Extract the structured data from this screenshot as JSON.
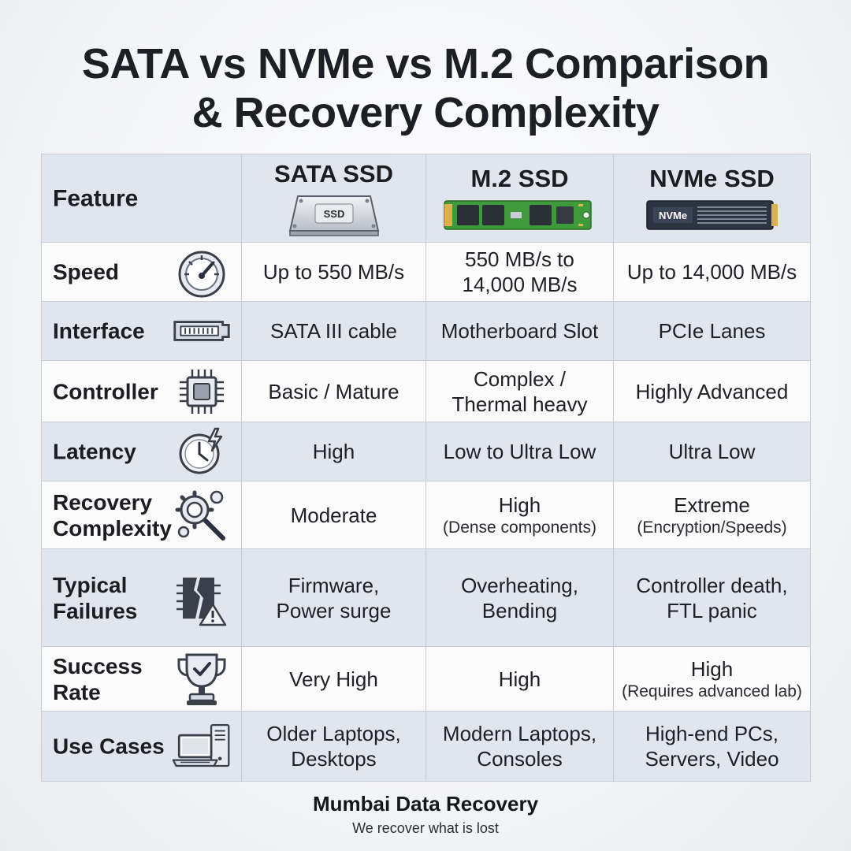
{
  "title": {
    "line1": "SATA vs NVMe vs M.2 Comparison",
    "line2": "& Recovery Complexity"
  },
  "table": {
    "feature_header": "Feature",
    "columns": [
      {
        "label": "SATA SSD",
        "image_icon": "sata-ssd-drive-icon",
        "image_text": "SSD"
      },
      {
        "label": "M.2 SSD",
        "image_icon": "m2-ssd-stick-icon"
      },
      {
        "label": "NVMe SSD",
        "image_icon": "nvme-ssd-stick-icon",
        "image_text": "NVMe"
      }
    ],
    "rows": [
      {
        "feature_line1": "Speed",
        "icon": "speedometer-icon",
        "cells": [
          {
            "main": "Up to 550 MB/s"
          },
          {
            "main": "550 MB/s to",
            "main2": "14,000 MB/s"
          },
          {
            "main": "Up to 14,000 MB/s"
          }
        ]
      },
      {
        "feature_line1": "Interface",
        "icon": "connector-port-icon",
        "cells": [
          {
            "main": "SATA III cable"
          },
          {
            "main": "Motherboard Slot"
          },
          {
            "main": "PCIe Lanes"
          }
        ]
      },
      {
        "feature_line1": "Controller",
        "icon": "chip-icon",
        "cells": [
          {
            "main": "Basic / Mature"
          },
          {
            "main": "Complex /",
            "main2": "Thermal heavy"
          },
          {
            "main": "Highly Advanced"
          }
        ]
      },
      {
        "feature_line1": "Latency",
        "icon": "clock-lightning-icon",
        "cells": [
          {
            "main": "High"
          },
          {
            "main": "Low to Ultra Low"
          },
          {
            "main": "Ultra Low"
          }
        ]
      },
      {
        "feature_line1": "Recovery",
        "feature_line2": "Complexity",
        "icon": "gears-magnifier-icon",
        "cells": [
          {
            "main": "Moderate"
          },
          {
            "main": "High",
            "sub": "(Dense components)"
          },
          {
            "main": "Extreme",
            "sub": "(Encryption/Speeds)"
          }
        ]
      },
      {
        "feature_line1": "Typical",
        "feature_line2": "Failures",
        "icon": "broken-chip-warning-icon",
        "cells": [
          {
            "main": "Firmware,",
            "main2": "Power surge"
          },
          {
            "main": "Overheating,",
            "main2": "Bending"
          },
          {
            "main": "Controller death,",
            "main2": "FTL panic"
          }
        ]
      },
      {
        "feature_line1": "Success",
        "feature_line2": "Rate",
        "icon": "trophy-check-icon",
        "cells": [
          {
            "main": "Very High"
          },
          {
            "main": "High"
          },
          {
            "main": "High",
            "sub": "(Requires advanced lab)"
          }
        ]
      },
      {
        "feature_line1": "Use Cases",
        "icon": "laptop-desktop-icon",
        "cells": [
          {
            "main": "Older Laptops,",
            "main2": "Desktops"
          },
          {
            "main": "Modern Laptops,",
            "main2": "Consoles"
          },
          {
            "main": "High-end PCs,",
            "main2": "Servers, Video"
          }
        ]
      }
    ]
  },
  "footer": {
    "brand": "Mumbai Data Recovery",
    "tagline": "We recover what is lost"
  },
  "colors": {
    "row_shade": "#e1e5ed",
    "row_white": "#fbfbfc",
    "border": "#c7ccd5",
    "pcb_green": "#3f9a3c",
    "nvme_dark": "#2c3442",
    "icon_stroke": "#3a3f4a"
  }
}
